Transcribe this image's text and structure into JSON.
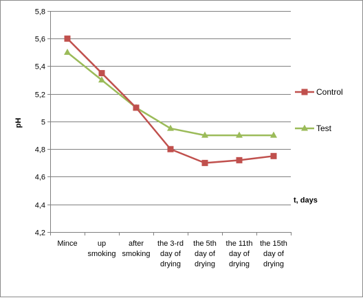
{
  "chart_data": {
    "type": "line",
    "title": "",
    "xlabel": "t, days",
    "ylabel": "pH",
    "ylim": [
      4.2,
      5.8
    ],
    "ytick_step": 0.2,
    "yticks": [
      "4,2",
      "4,4",
      "4,6",
      "4,8",
      "5",
      "5,2",
      "5,4",
      "5,6",
      "5,8"
    ],
    "grid": "horizontal",
    "legend_placement": "right",
    "categories": [
      [
        "Mince"
      ],
      [
        "up",
        "smoking"
      ],
      [
        "after",
        "smoking"
      ],
      [
        "the 3-rd",
        "day of",
        "drying"
      ],
      [
        "the 5th",
        "day of",
        "drying"
      ],
      [
        "the 11th",
        "day of",
        "drying"
      ],
      [
        "the 15th",
        "day of",
        "drying"
      ]
    ],
    "series": [
      {
        "name": "Control",
        "color": "#c0504d",
        "marker": "square",
        "values": [
          5.6,
          5.35,
          5.1,
          4.8,
          4.7,
          4.72,
          4.75
        ]
      },
      {
        "name": "Test",
        "color": "#9bbb59",
        "marker": "triangle",
        "values": [
          5.5,
          5.3,
          5.1,
          4.95,
          4.9,
          4.9,
          4.9
        ]
      }
    ]
  }
}
